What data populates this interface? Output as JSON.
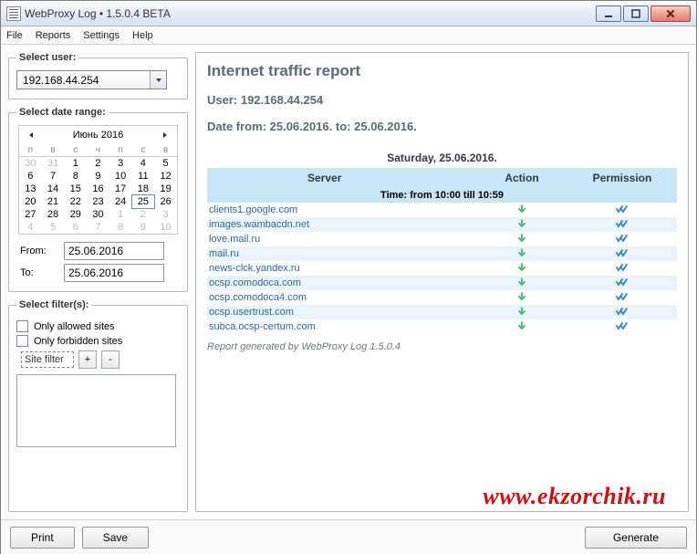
{
  "title": "WebProxy Log • 1.5.0.4 BETA",
  "menus": {
    "file": "File",
    "reports": "Reports",
    "settings": "Settings",
    "help": "Help"
  },
  "left": {
    "select_user_label": "Select user:",
    "user": "192.168.44.254",
    "select_date_label": "Select date range:",
    "from_label": "From:",
    "to_label": "To:",
    "from_value": "25.06.2016",
    "to_value": "25.06.2016",
    "filters_label": "Select filter(s):",
    "only_allowed": "Only allowed sites",
    "only_forbidden": "Only forbidden sites",
    "site_filter": "Site filter",
    "plus": "+",
    "minus": "-"
  },
  "calendar": {
    "month": "Июнь 2016",
    "dow": [
      "п",
      "в",
      "с",
      "ч",
      "п",
      "с",
      "в"
    ],
    "weeks": [
      [
        {
          "d": "30",
          "mute": true
        },
        {
          "d": "31",
          "mute": true
        },
        {
          "d": "1"
        },
        {
          "d": "2"
        },
        {
          "d": "3"
        },
        {
          "d": "4"
        },
        {
          "d": "5"
        }
      ],
      [
        {
          "d": "6"
        },
        {
          "d": "7"
        },
        {
          "d": "8"
        },
        {
          "d": "9"
        },
        {
          "d": "10"
        },
        {
          "d": "11"
        },
        {
          "d": "12"
        }
      ],
      [
        {
          "d": "13"
        },
        {
          "d": "14"
        },
        {
          "d": "15"
        },
        {
          "d": "16"
        },
        {
          "d": "17"
        },
        {
          "d": "18"
        },
        {
          "d": "19"
        }
      ],
      [
        {
          "d": "20"
        },
        {
          "d": "21"
        },
        {
          "d": "22"
        },
        {
          "d": "23"
        },
        {
          "d": "24"
        },
        {
          "d": "25",
          "today": true
        },
        {
          "d": "26"
        }
      ],
      [
        {
          "d": "27"
        },
        {
          "d": "28"
        },
        {
          "d": "29"
        },
        {
          "d": "30"
        },
        {
          "d": "1",
          "mute": true
        },
        {
          "d": "2",
          "mute": true
        },
        {
          "d": "3",
          "mute": true
        }
      ],
      [
        {
          "d": "4",
          "mute": true
        },
        {
          "d": "5",
          "mute": true
        },
        {
          "d": "6",
          "mute": true
        },
        {
          "d": "7",
          "mute": true
        },
        {
          "d": "8",
          "mute": true
        },
        {
          "d": "9",
          "mute": true
        },
        {
          "d": "10",
          "mute": true
        }
      ]
    ]
  },
  "report": {
    "title": "Internet traffic report",
    "user_line": "User: 192.168.44.254",
    "date_line": "Date from: 25.06.2016. to: 25.06.2016.",
    "day_header": "Saturday, 25.06.2016.",
    "cols": {
      "server": "Server",
      "action": "Action",
      "permission": "Permission"
    },
    "time_band": "Time: from 10:00 till 10:59",
    "rows": [
      {
        "server": "clients1.google.com",
        "action": "down",
        "perm": "ok",
        "stripe": false
      },
      {
        "server": "images.wambacdn.net",
        "action": "down",
        "perm": "ok",
        "stripe": true
      },
      {
        "server": "love.mail.ru",
        "action": "down",
        "perm": "ok",
        "stripe": false
      },
      {
        "server": "mail.ru",
        "action": "down",
        "perm": "ok",
        "stripe": true
      },
      {
        "server": "news-clck.yandex.ru",
        "action": "down",
        "perm": "ok",
        "stripe": false
      },
      {
        "server": "ocsp.comodoca.com",
        "action": "down",
        "perm": "ok",
        "stripe": true
      },
      {
        "server": "ocsp.comodoca4.com",
        "action": "down",
        "perm": "ok",
        "stripe": false
      },
      {
        "server": "ocsp.usertrust.com",
        "action": "down",
        "perm": "ok",
        "stripe": true
      },
      {
        "server": "subca.ocsp-certum.com",
        "action": "down",
        "perm": "ok",
        "stripe": false
      }
    ],
    "gen_note": "Report generated by WebProxy Log 1.5.0.4"
  },
  "icons": {
    "down_arrow": "↓",
    "check_double": "✔"
  },
  "footer": {
    "print": "Print",
    "save": "Save",
    "generate": "Generate"
  },
  "watermark": "www.ekzorchik.ru"
}
